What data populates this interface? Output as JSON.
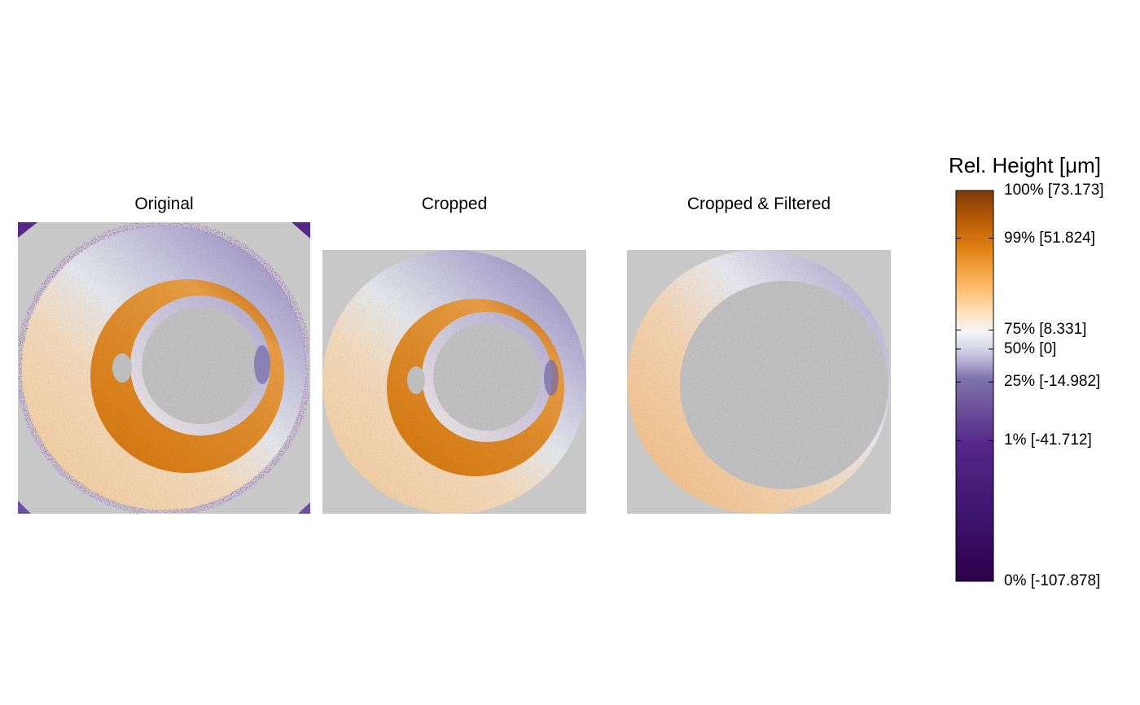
{
  "chart_data": {
    "type": "heatmap",
    "panels": [
      {
        "title": "Original",
        "region": "full-square",
        "edge_speckle": "purple"
      },
      {
        "title": "Cropped",
        "region": "disk-with-inner-hole"
      },
      {
        "title": "Cropped & Filtered",
        "region": "crescent"
      }
    ],
    "background_color": "#c8c8c8",
    "colorbar": {
      "title": "Rel. Height [μm]",
      "min": -107.878,
      "max": 73.173,
      "ticks": [
        {
          "label": "100% [73.173]",
          "value": 73.173
        },
        {
          "label": "99% [51.824]",
          "value": 51.824
        },
        {
          "label": "75% [8.331]",
          "value": 8.331
        },
        {
          "label": "50% [0]",
          "value": 0
        },
        {
          "label": "25% [-14.982]",
          "value": -14.982
        },
        {
          "label": "1% [-41.712]",
          "value": -41.712
        },
        {
          "label": "0% [-107.878]",
          "value": -107.878
        }
      ],
      "colors": [
        "#2d004b",
        "#542788",
        "#8073ac",
        "#b2abd2",
        "#d8daeb",
        "#f7f7f7",
        "#fee0b6",
        "#fdb863",
        "#e08214",
        "#b35806",
        "#7f3b08"
      ]
    }
  }
}
